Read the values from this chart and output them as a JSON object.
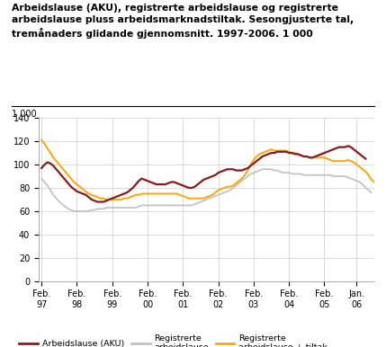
{
  "title_line1": "Arbeidslause (AKU), registrerte arbeidslause og registrerte",
  "title_line2": "arbeidslause pluss arbeidsmarknadstiltak. Sesongjusterte tal,",
  "title_line3": "tremånaders glidande gjennomsnitt. 1997-2006. 1 000",
  "unit_label": "1 000",
  "ylim": [
    0,
    140
  ],
  "yticks": [
    0,
    20,
    40,
    60,
    80,
    100,
    120,
    140
  ],
  "xtick_labels": [
    "Feb.\n97",
    "Feb.\n98",
    "Feb.\n99",
    "Feb.\n00",
    "Feb.\n01",
    "Feb.\n02",
    "Feb.\n03",
    "Feb.\n04",
    "Feb.\n05",
    "Jan.\n06"
  ],
  "xtick_positions": [
    0,
    12,
    24,
    36,
    48,
    60,
    72,
    84,
    96,
    107
  ],
  "legend": [
    "Arbeidslause (AKU)",
    "Registrerte\narbeidslause",
    "Registrerte\narbeidslause + tiltak"
  ],
  "colors": {
    "aku": "#8B1A1A",
    "reg": "#C0C0C0",
    "tiltak": "#FFA500"
  },
  "background": "#FFFFFF",
  "aku": [
    97,
    100,
    102,
    101,
    99,
    96,
    93,
    90,
    87,
    84,
    81,
    79,
    77,
    76,
    75,
    74,
    72,
    70,
    69,
    68,
    68,
    68,
    69,
    70,
    71,
    72,
    73,
    74,
    75,
    76,
    78,
    80,
    83,
    86,
    88,
    87,
    86,
    85,
    84,
    83,
    83,
    83,
    83,
    84,
    85,
    85,
    84,
    83,
    82,
    81,
    80,
    80,
    81,
    83,
    85,
    87,
    88,
    89,
    90,
    91,
    93,
    94,
    95,
    96,
    96,
    96,
    95,
    95,
    95,
    96,
    97,
    99,
    101,
    103,
    105,
    107,
    108,
    109,
    110,
    110,
    111,
    111,
    111,
    111,
    110,
    110,
    109,
    109,
    108,
    107,
    107,
    106,
    106,
    107,
    108,
    109,
    110,
    111,
    112,
    113,
    114,
    115,
    115,
    115,
    116,
    115,
    113,
    111,
    109,
    107,
    105
  ],
  "reg": [
    88,
    85,
    82,
    78,
    74,
    71,
    68,
    66,
    64,
    62,
    61,
    60,
    60,
    60,
    60,
    60,
    60,
    61,
    61,
    62,
    62,
    62,
    63,
    63,
    63,
    63,
    63,
    63,
    63,
    63,
    63,
    63,
    63,
    64,
    65,
    65,
    65,
    65,
    65,
    65,
    65,
    65,
    65,
    65,
    65,
    65,
    65,
    65,
    65,
    65,
    65,
    65,
    66,
    67,
    68,
    69,
    70,
    71,
    72,
    73,
    74,
    75,
    76,
    77,
    78,
    80,
    82,
    84,
    86,
    88,
    90,
    92,
    93,
    94,
    95,
    96,
    96,
    96,
    96,
    95,
    95,
    94,
    93,
    93,
    93,
    92,
    92,
    92,
    92,
    91,
    91,
    91,
    91,
    91,
    91,
    91,
    91,
    91,
    91,
    90,
    90,
    90,
    90,
    90,
    89,
    88,
    87,
    86,
    85,
    83,
    80,
    78,
    76
  ],
  "tiltak": [
    121,
    118,
    114,
    110,
    106,
    103,
    100,
    97,
    94,
    91,
    88,
    85,
    83,
    81,
    79,
    77,
    75,
    74,
    73,
    72,
    71,
    71,
    70,
    70,
    70,
    70,
    70,
    70,
    71,
    71,
    72,
    73,
    74,
    74,
    75,
    75,
    75,
    75,
    75,
    75,
    75,
    75,
    75,
    75,
    75,
    75,
    75,
    74,
    73,
    72,
    71,
    71,
    71,
    71,
    71,
    71,
    72,
    73,
    74,
    76,
    78,
    79,
    80,
    81,
    81,
    82,
    84,
    86,
    88,
    91,
    95,
    100,
    104,
    107,
    109,
    110,
    111,
    112,
    113,
    112,
    112,
    112,
    112,
    112,
    111,
    110,
    110,
    109,
    108,
    107,
    107,
    106,
    106,
    106,
    106,
    106,
    106,
    105,
    104,
    103,
    103,
    103,
    103,
    103,
    104,
    103,
    102,
    100,
    98,
    96,
    94,
    91,
    87,
    85
  ]
}
